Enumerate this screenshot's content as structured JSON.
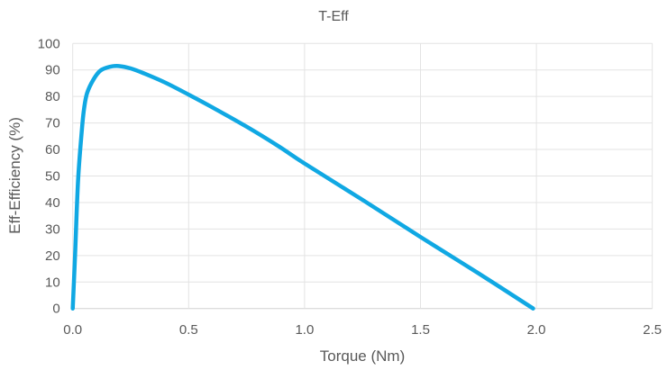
{
  "chart_data": {
    "type": "line",
    "title": "T-Eff",
    "xlabel": "Torque (Nm)",
    "ylabel": "Eff-Efficiency (%)",
    "xlim": [
      0,
      2.5
    ],
    "ylim": [
      0,
      100
    ],
    "xticks": [
      "0.0",
      "0.5",
      "1.0",
      "1.5",
      "2.0",
      "2.5"
    ],
    "yticks": [
      "0",
      "10",
      "20",
      "30",
      "40",
      "50",
      "60",
      "70",
      "80",
      "90",
      "100"
    ],
    "grid": true,
    "legend": "none",
    "series": [
      {
        "color": "#10a8e3",
        "x": [
          0.0,
          0.01,
          0.023,
          0.04,
          0.049,
          0.062,
          0.09,
          0.12,
          0.16,
          0.198,
          0.25,
          0.308,
          0.4,
          0.5,
          0.6,
          0.75,
          0.89,
          1.0,
          1.25,
          1.5,
          1.75,
          1.986
        ],
        "y": [
          0,
          20,
          48.3,
          68,
          75.5,
          81.3,
          86.5,
          89.8,
          91.2,
          91.5,
          90.6,
          88.7,
          85.2,
          80.7,
          76.0,
          68.6,
          61.1,
          54.7,
          41.0,
          27.0,
          13.3,
          0
        ]
      }
    ]
  }
}
